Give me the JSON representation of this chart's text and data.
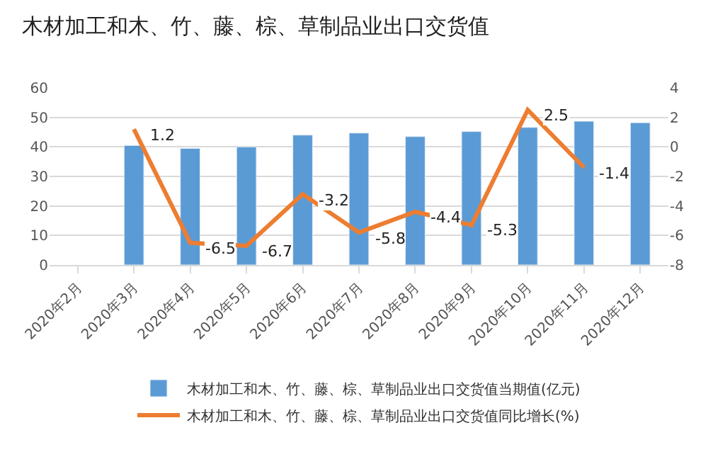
{
  "chart_data": {
    "type": "bar",
    "title": "木材加工和木、竹、藤、棕、草制品业出口交货值",
    "categories": [
      "2020年2月",
      "2020年3月",
      "2020年4月",
      "2020年5月",
      "2020年6月",
      "2020年7月",
      "2020年8月",
      "2020年9月",
      "2020年10月",
      "2020年11月",
      "2020年12月"
    ],
    "series": [
      {
        "name": "木材加工和木、竹、藤、棕、草制品业出口交货值当期值(亿元)",
        "color": "#5b9bd5",
        "values": [
          null,
          40.5,
          39.5,
          40.0,
          44.0,
          44.7,
          43.5,
          45.2,
          46.6,
          48.7,
          48.2
        ]
      },
      {
        "name": "木材加工和木、竹、藤、棕、草制品业出口交货值同比增长(%)",
        "type": "line",
        "axis": "y2",
        "color": "#ed7d31",
        "values": [
          null,
          1.2,
          -6.5,
          -6.7,
          -3.2,
          -5.8,
          -4.4,
          -5.3,
          2.5,
          -1.4,
          null
        ],
        "value_labels": [
          null,
          "1.2",
          "-6.5",
          "-6.7",
          "-3.2",
          "-5.8",
          "-4.4",
          "-5.3",
          "2.5",
          "-1.4",
          null
        ]
      }
    ],
    "ylim": [
      0,
      60
    ],
    "yticks": [
      0,
      10,
      20,
      30,
      40,
      50,
      60
    ],
    "y2lim": [
      -8,
      4
    ],
    "y2ticks": [
      -8,
      -6,
      -4,
      -2,
      0,
      2,
      4
    ],
    "grid": "y",
    "legend": "bottom",
    "marker": "none"
  }
}
